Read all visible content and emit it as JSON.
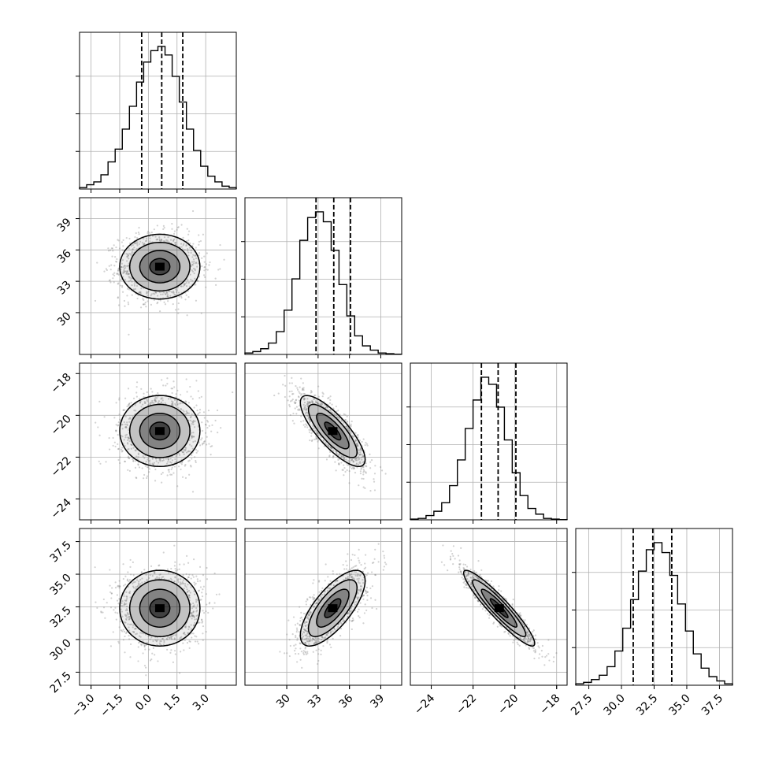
{
  "chart_data": {
    "type": "corner",
    "variables": [
      {
        "range": [
          -3.6,
          4.6
        ],
        "ticks": [
          -3.0,
          -1.5,
          0.0,
          1.5,
          3.0
        ],
        "tick_labels": [
          "−3.0",
          "−1.5",
          "0.0",
          "1.5",
          "3.0"
        ],
        "quantiles": [
          -0.35,
          0.7,
          1.8
        ],
        "hist": [
          0.01,
          0.03,
          0.05,
          0.1,
          0.19,
          0.28,
          0.42,
          0.58,
          0.75,
          0.89,
          0.97,
          1.0,
          0.94,
          0.79,
          0.61,
          0.42,
          0.27,
          0.16,
          0.09,
          0.05,
          0.02,
          0.01
        ]
      },
      {
        "range": [
          26.0,
          41.0
        ],
        "ticks": [
          30,
          33,
          36,
          39
        ],
        "tick_labels": [
          "30",
          "33",
          "36",
          "39"
        ],
        "quantiles": [
          32.8,
          34.5,
          36.1
        ],
        "hist": [
          0.01,
          0.02,
          0.04,
          0.08,
          0.16,
          0.31,
          0.53,
          0.8,
          0.96,
          1.0,
          0.93,
          0.73,
          0.49,
          0.27,
          0.13,
          0.06,
          0.03,
          0.01,
          0.005,
          0.002
        ]
      },
      {
        "range": [
          -25.0,
          -17.5
        ],
        "ticks": [
          -24,
          -22,
          -20,
          -18
        ],
        "tick_labels": [
          "−24",
          "−22",
          "−20",
          "−18"
        ],
        "quantiles": [
          -21.6,
          -20.8,
          -19.95
        ],
        "hist": [
          0.005,
          0.01,
          0.03,
          0.06,
          0.12,
          0.24,
          0.42,
          0.64,
          0.84,
          1.0,
          0.95,
          0.79,
          0.56,
          0.33,
          0.17,
          0.08,
          0.04,
          0.01,
          0.005,
          0.002
        ]
      },
      {
        "range": [
          26.5,
          38.5
        ],
        "ticks": [
          27.5,
          30.0,
          32.5,
          35.0,
          37.5
        ],
        "tick_labels": [
          "27.5",
          "30.0",
          "32.5",
          "35.0",
          "37.5"
        ],
        "quantiles": [
          30.9,
          32.4,
          33.85
        ],
        "hist": [
          0.01,
          0.02,
          0.04,
          0.07,
          0.13,
          0.24,
          0.4,
          0.6,
          0.8,
          0.95,
          1.0,
          0.93,
          0.77,
          0.57,
          0.38,
          0.22,
          0.12,
          0.06,
          0.03,
          0.01
        ]
      }
    ],
    "pairs": [
      {
        "row": 1,
        "col": 0,
        "mean": [
          0.6,
          34.4
        ],
        "sd": [
          1.05,
          1.55
        ],
        "corr": 0.0
      },
      {
        "row": 2,
        "col": 0,
        "mean": [
          0.6,
          -20.75
        ],
        "sd": [
          1.05,
          0.85
        ],
        "corr": 0.0
      },
      {
        "row": 2,
        "col": 1,
        "mean": [
          34.4,
          -20.75
        ],
        "sd": [
          1.55,
          0.85
        ],
        "corr": -0.8
      },
      {
        "row": 3,
        "col": 0,
        "mean": [
          0.6,
          32.4
        ],
        "sd": [
          1.05,
          1.45
        ],
        "corr": 0.0
      },
      {
        "row": 3,
        "col": 1,
        "mean": [
          34.4,
          32.4
        ],
        "sd": [
          1.55,
          1.45
        ],
        "corr": 0.72
      },
      {
        "row": 3,
        "col": 2,
        "mean": [
          -20.75,
          32.4
        ],
        "sd": [
          0.85,
          1.45
        ],
        "corr": -0.93
      }
    ],
    "contour_levels": [
      0.5,
      1.0,
      1.5,
      2.0
    ],
    "grid": true,
    "colors": {
      "line": "#000000",
      "grid": "#b0b0b0",
      "points": "#7f7f7f",
      "density": "#000000"
    }
  }
}
